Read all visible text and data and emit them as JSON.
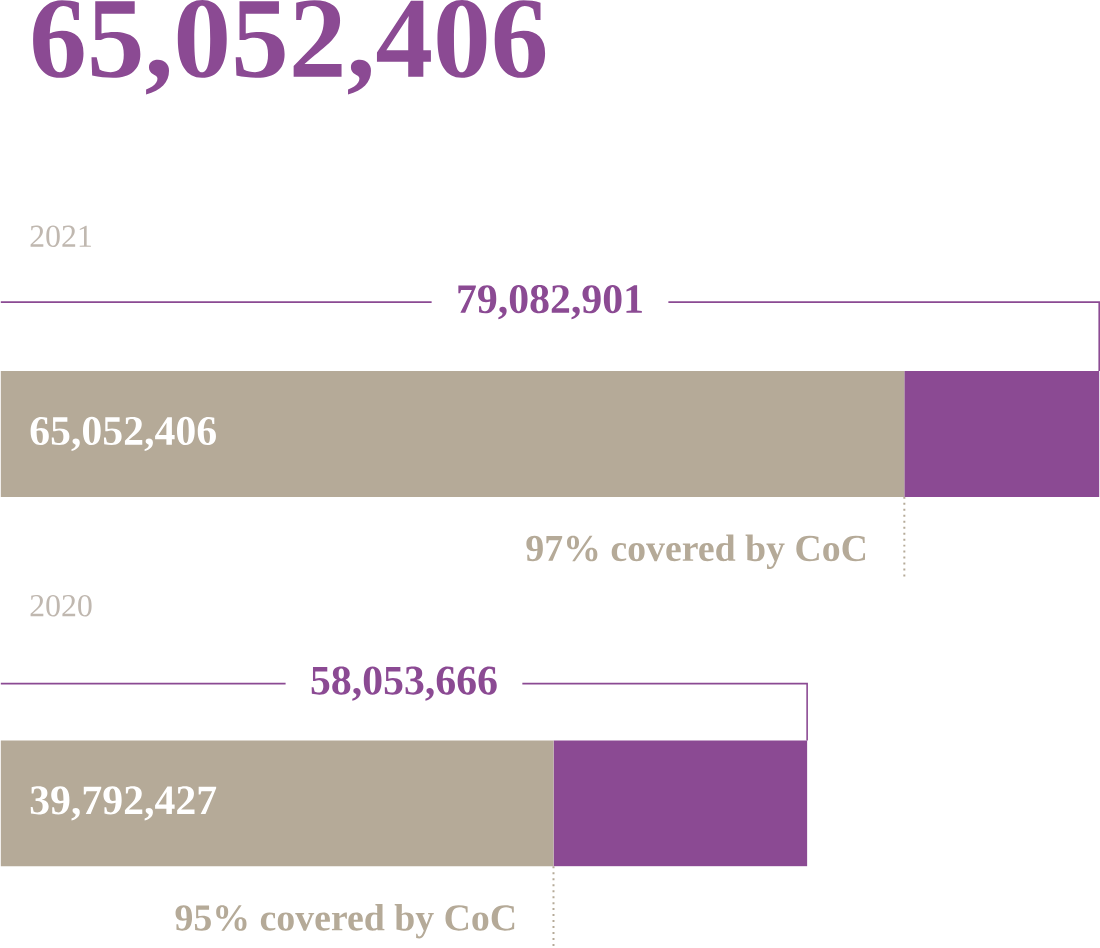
{
  "chart_data": {
    "type": "bar",
    "orientation": "horizontal",
    "stacked": true,
    "title": "65,052,406",
    "categories": [
      "2021",
      "2020"
    ],
    "series": [
      {
        "color": "#b5aa98",
        "values": [
          65052406,
          39792427
        ],
        "value_labels": [
          "65,052,406",
          "39,792,427"
        ]
      },
      {
        "color": "#8b4a93",
        "values": [
          14030495,
          18261239
        ]
      }
    ],
    "totals": [
      "79,082,901",
      "58,053,666"
    ],
    "annotations": [
      "97% covered by CoC",
      "95% covered by CoC"
    ]
  }
}
